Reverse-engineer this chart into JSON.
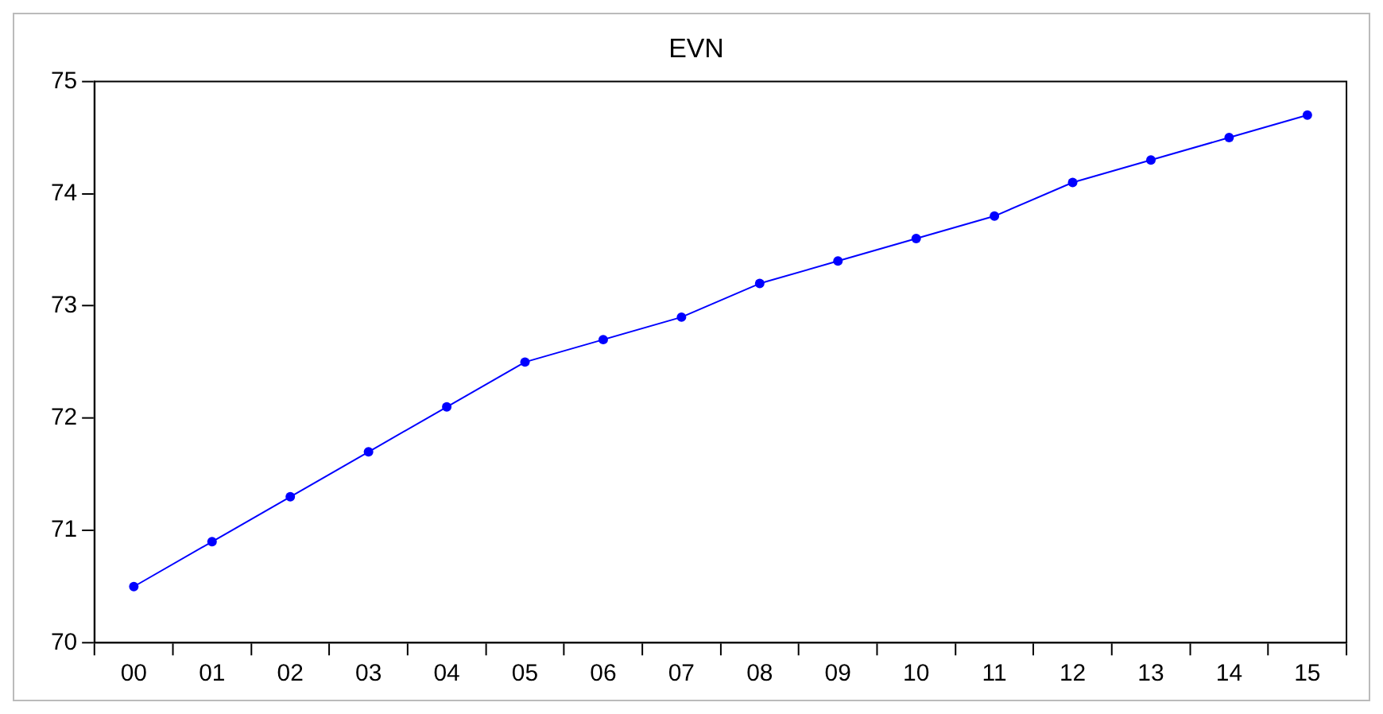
{
  "chart_data": {
    "type": "line",
    "title": "EVN",
    "categories": [
      "00",
      "01",
      "02",
      "03",
      "04",
      "05",
      "06",
      "07",
      "08",
      "09",
      "10",
      "11",
      "12",
      "13",
      "14",
      "15"
    ],
    "series": [
      {
        "color": "#0000ff",
        "values": [
          70.5,
          70.9,
          71.3,
          71.7,
          72.1,
          72.5,
          72.7,
          72.9,
          73.2,
          73.4,
          73.6,
          73.8,
          74.1,
          74.3,
          74.5,
          74.7
        ]
      }
    ],
    "ylim": [
      70,
      75
    ],
    "yticks": [
      70,
      71,
      72,
      73,
      74,
      75
    ],
    "grid": false,
    "legend": false,
    "marker": "circle",
    "line_style": "solid"
  }
}
